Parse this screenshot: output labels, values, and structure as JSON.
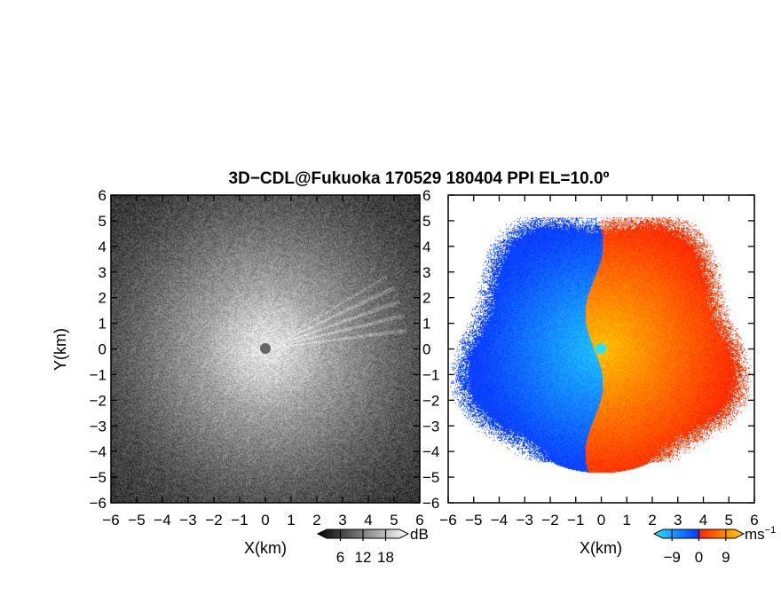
{
  "title": "3D−CDL@Fukuoka 170529 180404 PPI EL=10.0º",
  "colors": {
    "velocity_negative_dark": "#0a3cff",
    "velocity_negative_light": "#22e6ff",
    "velocity_positive_dark": "#ff2a00",
    "velocity_positive_light": "#ffd200",
    "radar_center": "#666666"
  },
  "chart_data": [
    {
      "type": "heatmap",
      "name": "signal-intensity-ppi",
      "xlabel": "X(km)",
      "ylabel": "Y(km)",
      "xlim": [
        -6,
        6
      ],
      "ylim": [
        -6,
        6
      ],
      "x_ticks": [
        "−6",
        "−5",
        "−4",
        "−3",
        "−2",
        "−1",
        "0",
        "1",
        "2",
        "3",
        "4",
        "5",
        "6"
      ],
      "y_ticks": [
        "−6",
        "−5",
        "−4",
        "−3",
        "−2",
        "−1",
        "0",
        "1",
        "2",
        "3",
        "4",
        "5",
        "6"
      ],
      "colorbar": {
        "unit": "dB",
        "tick_labels": [
          "6",
          "12",
          "18"
        ],
        "ticks": [
          6,
          12,
          18
        ],
        "range": [
          0,
          24
        ],
        "colors": [
          "#000000",
          "#ffffff"
        ]
      }
    },
    {
      "type": "heatmap",
      "name": "radial-velocity-ppi",
      "xlabel": "X(km)",
      "ylabel": "",
      "xlim": [
        -6,
        6
      ],
      "ylim": [
        -6,
        6
      ],
      "x_ticks": [
        "−6",
        "−5",
        "−4",
        "−3",
        "−2",
        "−1",
        "0",
        "1",
        "2",
        "3",
        "4",
        "5",
        "6"
      ],
      "y_ticks": [
        "−6",
        "−5",
        "−4",
        "−3",
        "−2",
        "−1",
        "0",
        "1",
        "2",
        "3",
        "4",
        "5",
        "6"
      ],
      "colorbar": {
        "unit": "ms",
        "unit_exponent": "−1",
        "tick_labels": [
          "−9",
          "0",
          "9"
        ],
        "ticks": [
          -9,
          0,
          9
        ],
        "range": [
          -15,
          15
        ],
        "colors": [
          "#22e6ff",
          "#0a3cff",
          "#ff2a00",
          "#ffd200"
        ]
      }
    }
  ]
}
